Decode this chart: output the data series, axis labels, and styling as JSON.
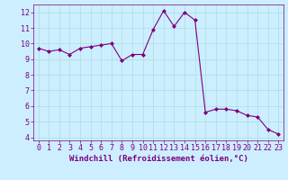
{
  "x": [
    0,
    1,
    2,
    3,
    4,
    5,
    6,
    7,
    8,
    9,
    10,
    11,
    12,
    13,
    14,
    15,
    16,
    17,
    18,
    19,
    20,
    21,
    22,
    23
  ],
  "y": [
    9.7,
    9.5,
    9.6,
    9.3,
    9.7,
    9.8,
    9.9,
    10.0,
    8.9,
    9.3,
    9.3,
    10.9,
    12.1,
    11.1,
    12.0,
    11.5,
    5.6,
    5.8,
    5.8,
    5.7,
    5.4,
    5.3,
    4.5,
    4.2
  ],
  "line_color": "#7B0080",
  "marker": "D",
  "markersize": 2.0,
  "linewidth": 0.8,
  "xlabel": "Windchill (Refroidissement éolien,°C)",
  "xlim": [
    -0.5,
    23.5
  ],
  "ylim": [
    3.8,
    12.5
  ],
  "yticks": [
    4,
    5,
    6,
    7,
    8,
    9,
    10,
    11,
    12
  ],
  "xticks": [
    0,
    1,
    2,
    3,
    4,
    5,
    6,
    7,
    8,
    9,
    10,
    11,
    12,
    13,
    14,
    15,
    16,
    17,
    18,
    19,
    20,
    21,
    22,
    23
  ],
  "background_color": "#cceeff",
  "grid_color": "#aadddd",
  "xlabel_color": "#7B0080",
  "tick_color": "#7B0080",
  "xlabel_fontsize": 6.5,
  "tick_fontsize": 6.0
}
